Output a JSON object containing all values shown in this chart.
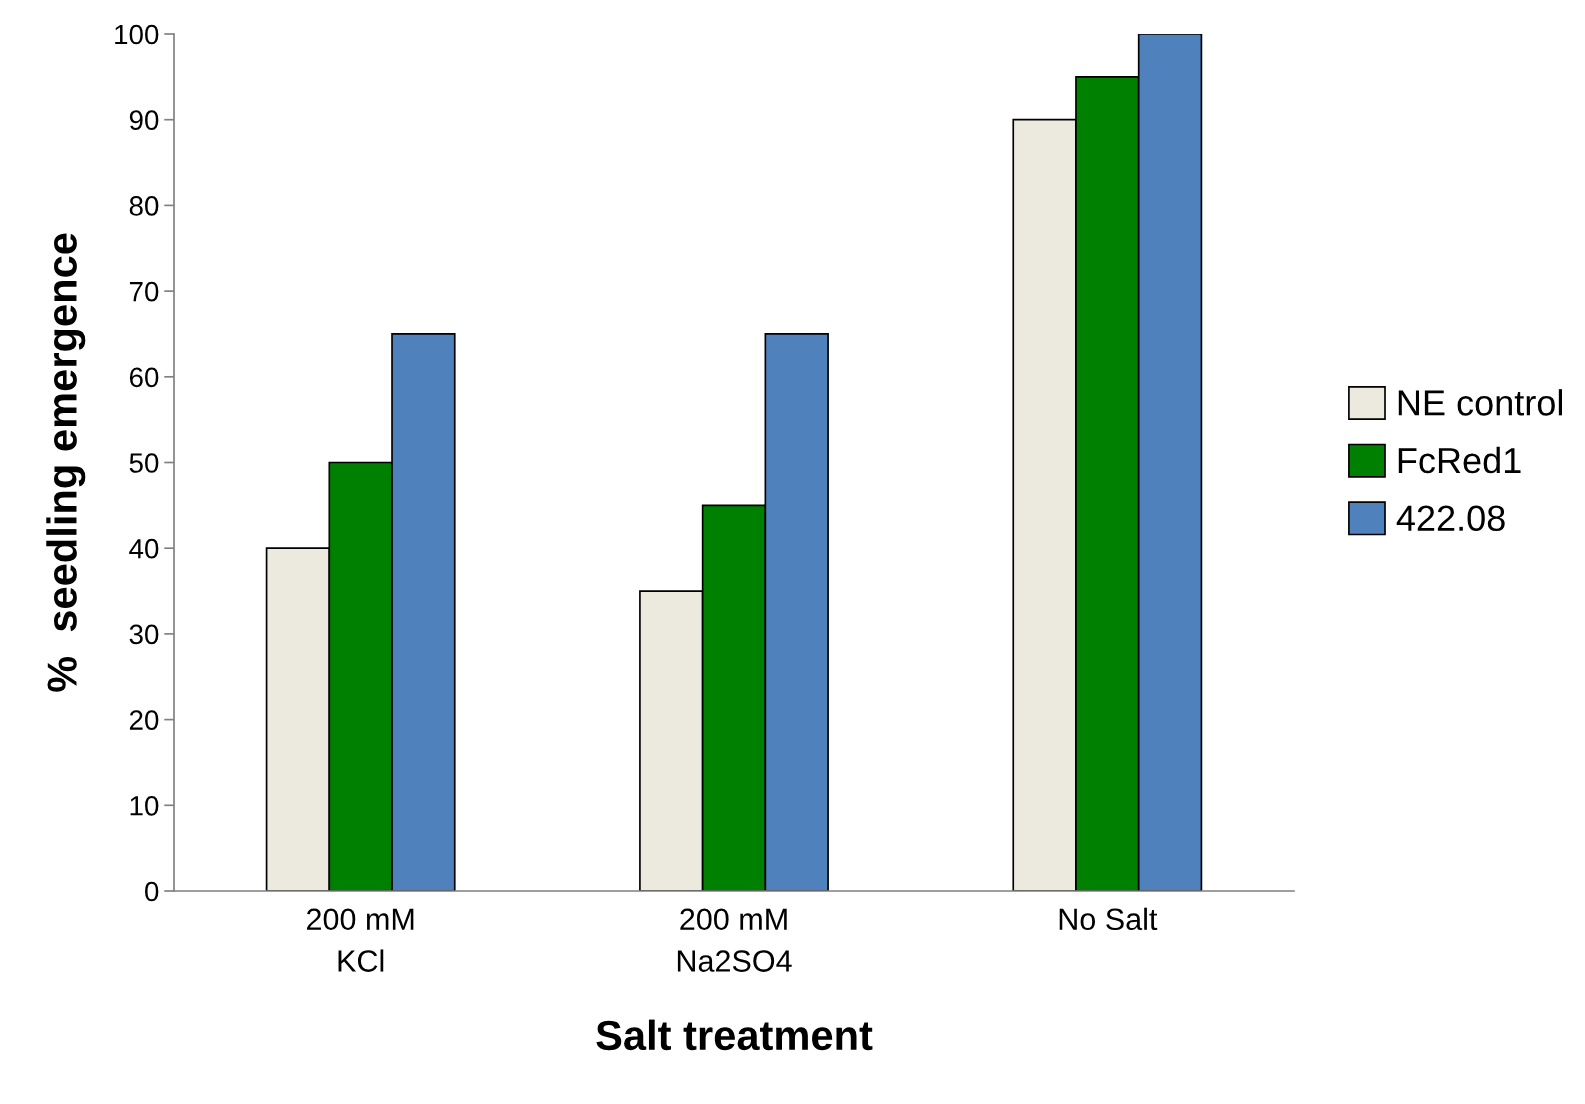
{
  "chart_data": {
    "type": "bar",
    "xlabel": "Salt treatment",
    "ylabel": "%  seedling emergence",
    "categories": [
      "200 mM\nKCl",
      "200 mM\nNa2SO4",
      "No Salt"
    ],
    "series": [
      {
        "name": "NE control",
        "color": "#ece9df",
        "values": [
          40,
          35,
          90
        ]
      },
      {
        "name": "FcRed1",
        "color": "#008000",
        "values": [
          50,
          45,
          95
        ]
      },
      {
        "name": "422.08",
        "color": "#4f81bd",
        "values": [
          65,
          65,
          100
        ]
      }
    ],
    "ylim": [
      0,
      100
    ],
    "yticks": [
      0,
      10,
      20,
      30,
      40,
      50,
      60,
      70,
      80,
      90,
      100
    ],
    "grid": false,
    "legend": "right"
  }
}
